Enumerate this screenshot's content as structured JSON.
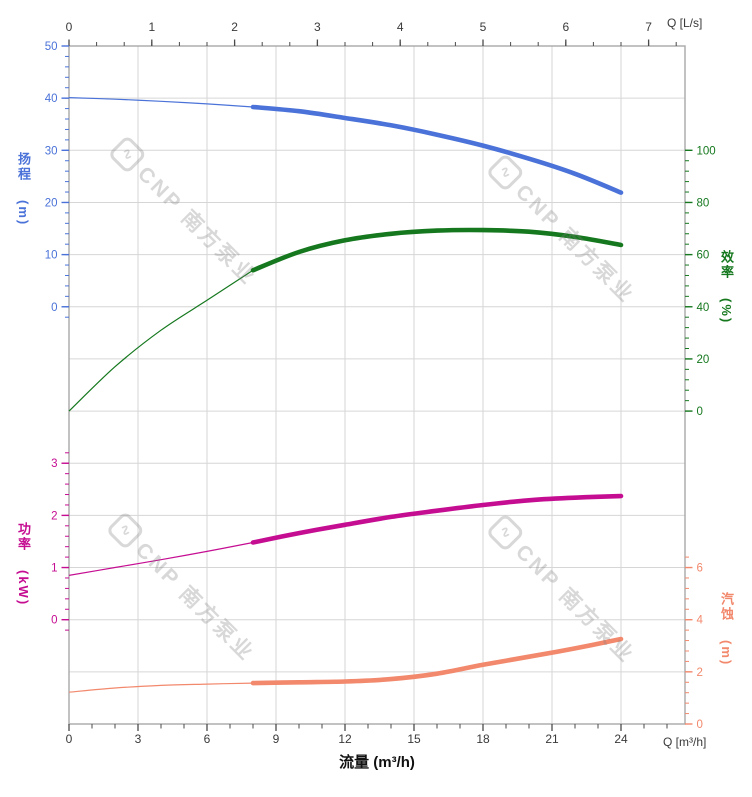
{
  "chart_data": {
    "type": "line",
    "title": "",
    "grid": true,
    "legend": "none",
    "x_bottom": {
      "label": "流量 (m³/h)",
      "corner_label": "Q [m³/h]",
      "unit": "m³/h",
      "min": 0,
      "max": 26,
      "label_max": 24,
      "major_step": 3,
      "minor_step": 1,
      "major_tick_labels": [
        0,
        3,
        6,
        9,
        12,
        15,
        18,
        21,
        24
      ]
    },
    "x_top": {
      "corner_label": "Q [L/s]",
      "unit": "L/s",
      "min": 0,
      "max": 7.3333,
      "label_max": 7,
      "major_step": 1,
      "minor_step": 0.33333,
      "major_tick_labels": [
        0,
        1,
        2,
        3,
        4,
        5,
        6,
        7
      ]
    },
    "axes": {
      "head": {
        "title": "扬程",
        "unit": "(m)",
        "color": "#4a72d8",
        "side": "left",
        "range_min": -2,
        "range_max": 50,
        "label_min": 0,
        "label_max": 50,
        "major_step": 10,
        "minor_step": 2
      },
      "efficiency": {
        "title": "效率",
        "unit": "(%)",
        "color": "#15781e",
        "side": "right",
        "range_min": 0,
        "range_max": 100,
        "label_min": 0,
        "label_max": 100,
        "major_step": 20,
        "minor_step": 4
      },
      "power": {
        "title": "功率",
        "unit": "(kW)",
        "color": "#c50d92",
        "side": "left",
        "range_min": -0.2,
        "range_max": 3.2,
        "label_min": 0,
        "label_max": 3,
        "major_step": 1,
        "minor_step": 0.2
      },
      "npsh": {
        "title": "汽蚀",
        "unit": "(m)",
        "color": "#f2886c",
        "side": "right",
        "range_min": 0,
        "range_max": 6.4,
        "label_min": 0,
        "label_max": 6,
        "major_step": 2,
        "minor_step": 0.4
      }
    },
    "series": [
      {
        "id": "head",
        "name": "扬程 H(m)",
        "axis": "head",
        "color": "#4a72d8",
        "bold_from_q": 8,
        "points": [
          [
            0,
            40.1
          ],
          [
            2,
            39.8
          ],
          [
            4,
            39.4
          ],
          [
            6,
            38.9
          ],
          [
            8,
            38.3
          ],
          [
            10,
            37.5
          ],
          [
            12,
            36.2
          ],
          [
            14,
            34.8
          ],
          [
            16,
            33.0
          ],
          [
            18,
            30.9
          ],
          [
            20,
            28.4
          ],
          [
            22,
            25.5
          ],
          [
            24,
            21.9
          ]
        ]
      },
      {
        "id": "efficiency",
        "name": "效率 η(%)",
        "axis": "efficiency",
        "color": "#15781e",
        "bold_from_q": 8,
        "points": [
          [
            0,
            0
          ],
          [
            2,
            17
          ],
          [
            4,
            31
          ],
          [
            6,
            42.5
          ],
          [
            8,
            54
          ],
          [
            10,
            61
          ],
          [
            12,
            65.5
          ],
          [
            14,
            68
          ],
          [
            16,
            69.2
          ],
          [
            18,
            69.4
          ],
          [
            20,
            68.8
          ],
          [
            22,
            66.8
          ],
          [
            24,
            63.7
          ]
        ]
      },
      {
        "id": "power",
        "name": "功率 P(kW)",
        "axis": "power",
        "color": "#c50d92",
        "bold_from_q": 8,
        "points": [
          [
            0,
            0.85
          ],
          [
            2,
            1.0
          ],
          [
            4,
            1.15
          ],
          [
            6,
            1.31
          ],
          [
            8,
            1.48
          ],
          [
            10,
            1.66
          ],
          [
            12,
            1.82
          ],
          [
            14,
            1.97
          ],
          [
            16,
            2.09
          ],
          [
            18,
            2.2
          ],
          [
            20,
            2.29
          ],
          [
            22,
            2.34
          ],
          [
            24,
            2.37
          ]
        ]
      },
      {
        "id": "npsh",
        "name": "汽蚀 NPSH(m)",
        "axis": "npsh",
        "color": "#f2886c",
        "bold_from_q": 8,
        "points": [
          [
            0,
            1.22
          ],
          [
            2,
            1.38
          ],
          [
            4,
            1.48
          ],
          [
            6,
            1.53
          ],
          [
            8,
            1.57
          ],
          [
            10,
            1.6
          ],
          [
            12,
            1.63
          ],
          [
            14,
            1.72
          ],
          [
            16,
            1.93
          ],
          [
            18,
            2.27
          ],
          [
            20,
            2.58
          ],
          [
            22,
            2.9
          ],
          [
            24,
            3.26
          ]
        ]
      }
    ],
    "style": {
      "grid_color": "#d6d6d6",
      "frame_color": "#a9a9a9",
      "x_text_color": "#3a3a3a",
      "x_tick_color": "#4a4a4a"
    }
  },
  "watermark": {
    "logo_glyph": "∿",
    "text": "CNP 南方泵业"
  }
}
